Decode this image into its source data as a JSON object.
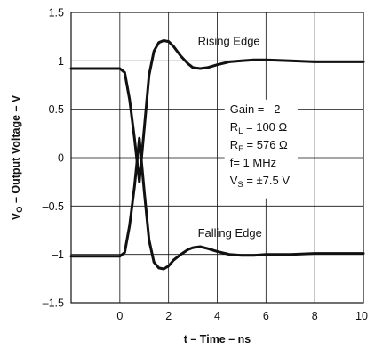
{
  "chart_data": {
    "type": "line",
    "xlabel": "t – Time – ns",
    "ylabel_main": "V",
    "ylabel_sub": "O",
    "ylabel_rest": " – Output Voltage – V",
    "xlim": [
      -2,
      10
    ],
    "ylim": [
      -1.5,
      1.5
    ],
    "grid": true,
    "x_ticks": [
      0,
      2,
      4,
      6,
      8,
      10
    ],
    "x_tick_labels": [
      "0",
      "2",
      "4",
      "6",
      "8",
      "10"
    ],
    "y_ticks": [
      1.5,
      1,
      0.5,
      0,
      -0.5,
      -1,
      -1.5
    ],
    "y_tick_labels": [
      "1.5",
      "1",
      "0.5",
      "0",
      "–0.5",
      "–1",
      "–1.5"
    ],
    "series": [
      {
        "name": "Rising Edge",
        "color": "#111111",
        "x": [
          -2,
          0,
          0.2,
          0.4,
          0.6,
          0.8,
          1.0,
          1.2,
          1.4,
          1.6,
          1.8,
          2.0,
          2.2,
          2.5,
          2.8,
          3.0,
          3.3,
          3.6,
          4.0,
          4.5,
          5.0,
          5.5,
          6.0,
          7.0,
          8.0,
          9.0,
          10.0
        ],
        "y": [
          0.92,
          0.92,
          0.88,
          0.6,
          0.2,
          -0.25,
          0.3,
          0.85,
          1.1,
          1.19,
          1.21,
          1.2,
          1.15,
          1.05,
          0.97,
          0.93,
          0.92,
          0.93,
          0.96,
          0.99,
          1.0,
          1.01,
          1.01,
          1.0,
          0.99,
          0.99,
          0.99
        ]
      },
      {
        "name": "Falling Edge",
        "color": "#111111",
        "x": [
          -2,
          0,
          0.2,
          0.4,
          0.6,
          0.8,
          1.0,
          1.2,
          1.4,
          1.6,
          1.8,
          2.0,
          2.2,
          2.5,
          2.8,
          3.0,
          3.3,
          3.6,
          4.0,
          4.5,
          5.0,
          5.5,
          6.0,
          7.0,
          8.0,
          9.0,
          10.0
        ],
        "y": [
          -1.02,
          -1.02,
          -0.98,
          -0.7,
          -0.3,
          0.2,
          -0.35,
          -0.85,
          -1.08,
          -1.14,
          -1.15,
          -1.12,
          -1.06,
          -1.0,
          -0.95,
          -0.93,
          -0.92,
          -0.94,
          -0.97,
          -1.0,
          -1.01,
          -1.01,
          -1.0,
          -1.0,
          -0.99,
          -0.99,
          -0.99
        ]
      }
    ],
    "annotations": [
      {
        "label": "Gain = –2"
      },
      {
        "main": "R",
        "sub": "L",
        "rest": " = 100 Ω"
      },
      {
        "main": "R",
        "sub": "F",
        "rest": " = 576 Ω"
      },
      {
        "label": "f= 1 MHz"
      },
      {
        "main": "V",
        "sub": "S",
        "rest": " = ±7.5 V"
      }
    ]
  }
}
